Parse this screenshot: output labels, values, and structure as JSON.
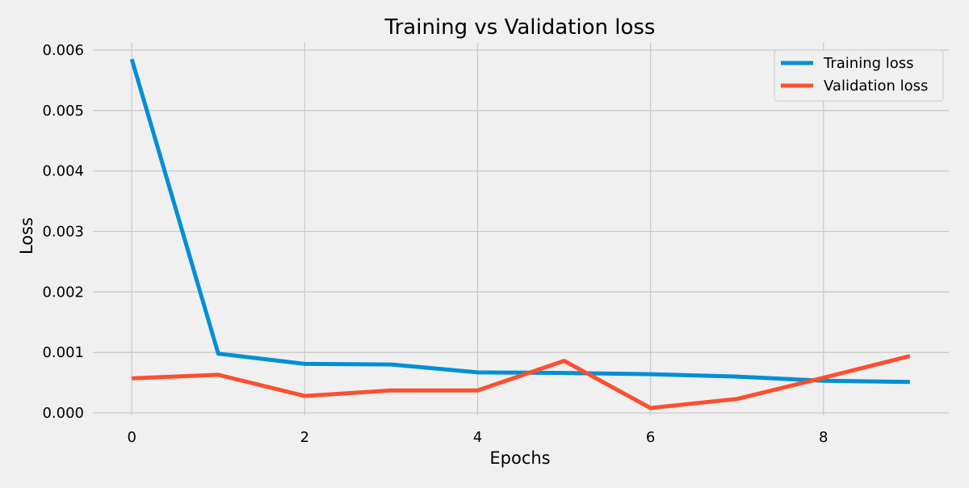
{
  "chart_data": {
    "type": "line",
    "title": "Training vs Validation loss",
    "xlabel": "Epochs",
    "ylabel": "Loss",
    "x": [
      0,
      1,
      2,
      3,
      4,
      5,
      6,
      7,
      8,
      9
    ],
    "xlim": [
      -0.45,
      9.45
    ],
    "ylim": [
      -4e-05,
      0.00612
    ],
    "xticks": [
      0,
      2,
      4,
      6,
      8
    ],
    "xtick_labels": [
      "0",
      "2",
      "4",
      "6",
      "8"
    ],
    "yticks": [
      0,
      0.001,
      0.002,
      0.003,
      0.004,
      0.005,
      0.006
    ],
    "ytick_labels": [
      "0.000",
      "0.001",
      "0.002",
      "0.003",
      "0.004",
      "0.005",
      "0.006"
    ],
    "grid": true,
    "legend_position": "top-right",
    "series": [
      {
        "name": "Training loss",
        "color": "#008fd5",
        "values": [
          0.00585,
          0.00098,
          0.00081,
          0.0008,
          0.00067,
          0.00066,
          0.00064,
          0.0006,
          0.00053,
          0.00051
        ]
      },
      {
        "name": "Validation loss",
        "color": "#fc4f30",
        "values": [
          0.00057,
          0.00063,
          0.00028,
          0.00037,
          0.00037,
          0.00086,
          8e-05,
          0.00023,
          0.00058,
          0.00094
        ]
      }
    ]
  }
}
